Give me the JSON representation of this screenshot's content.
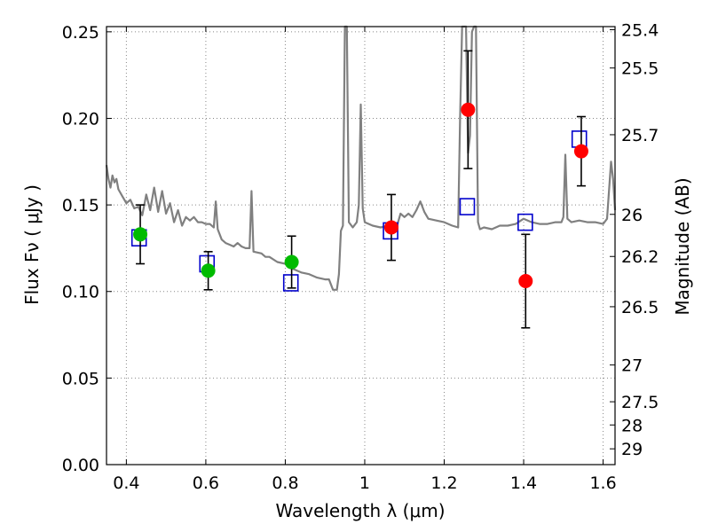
{
  "chart_data": {
    "type": "scatter",
    "xlabel": "Wavelength  λ (μm)",
    "ylabel": "Flux  Fν  ( μJy )",
    "y2label": "Magnitude (AB)",
    "xlim": [
      0.35,
      1.63
    ],
    "ylim": [
      0.0,
      0.253
    ],
    "grid": true,
    "x_ticks": [
      {
        "value": 0.4,
        "label": "0.4"
      },
      {
        "value": 0.6,
        "label": "0.6"
      },
      {
        "value": 0.8,
        "label": "0.8"
      },
      {
        "value": 1.0,
        "label": "1"
      },
      {
        "value": 1.2,
        "label": "1.2"
      },
      {
        "value": 1.4,
        "label": "1.4"
      },
      {
        "value": 1.6,
        "label": "1.6"
      }
    ],
    "y_ticks": [
      {
        "value": 0.0,
        "label": "0.00"
      },
      {
        "value": 0.05,
        "label": "0.05"
      },
      {
        "value": 0.1,
        "label": "0.10"
      },
      {
        "value": 0.15,
        "label": "0.15"
      },
      {
        "value": 0.2,
        "label": "0.20"
      },
      {
        "value": 0.25,
        "label": "0.25"
      }
    ],
    "y2_ticks": [
      {
        "mag": 25.4,
        "label": "25.4"
      },
      {
        "mag": 25.5,
        "label": "25.5"
      },
      {
        "mag": 25.7,
        "label": "25.7"
      },
      {
        "mag": 26.0,
        "label": "26"
      },
      {
        "mag": 26.2,
        "label": "26.2"
      },
      {
        "mag": 26.5,
        "label": "26.5"
      },
      {
        "mag": 27.0,
        "label": "27"
      },
      {
        "mag": 27.5,
        "label": "27.5"
      },
      {
        "mag": 28.0,
        "label": "28"
      },
      {
        "mag": 29.0,
        "label": "29"
      }
    ],
    "colors": {
      "model": "#808080",
      "green": "#00bb00",
      "red": "#ff0000",
      "box": "#0000cc",
      "errorbar": "#000000",
      "grid": "#888888"
    },
    "model_spectrum": [
      [
        0.35,
        0.173
      ],
      [
        0.355,
        0.165
      ],
      [
        0.36,
        0.16
      ],
      [
        0.365,
        0.167
      ],
      [
        0.37,
        0.163
      ],
      [
        0.375,
        0.165
      ],
      [
        0.38,
        0.159
      ],
      [
        0.39,
        0.155
      ],
      [
        0.4,
        0.151
      ],
      [
        0.41,
        0.153
      ],
      [
        0.42,
        0.148
      ],
      [
        0.43,
        0.149
      ],
      [
        0.44,
        0.144
      ],
      [
        0.45,
        0.156
      ],
      [
        0.46,
        0.147
      ],
      [
        0.47,
        0.16
      ],
      [
        0.48,
        0.146
      ],
      [
        0.49,
        0.158
      ],
      [
        0.5,
        0.145
      ],
      [
        0.51,
        0.151
      ],
      [
        0.52,
        0.14
      ],
      [
        0.53,
        0.147
      ],
      [
        0.54,
        0.138
      ],
      [
        0.55,
        0.143
      ],
      [
        0.56,
        0.141
      ],
      [
        0.57,
        0.143
      ],
      [
        0.58,
        0.14
      ],
      [
        0.59,
        0.14
      ],
      [
        0.6,
        0.139
      ],
      [
        0.61,
        0.139
      ],
      [
        0.62,
        0.137
      ],
      [
        0.625,
        0.152
      ],
      [
        0.63,
        0.136
      ],
      [
        0.64,
        0.13
      ],
      [
        0.65,
        0.128
      ],
      [
        0.66,
        0.127
      ],
      [
        0.67,
        0.126
      ],
      [
        0.68,
        0.128
      ],
      [
        0.69,
        0.126
      ],
      [
        0.7,
        0.125
      ],
      [
        0.71,
        0.125
      ],
      [
        0.715,
        0.158
      ],
      [
        0.72,
        0.123
      ],
      [
        0.74,
        0.122
      ],
      [
        0.75,
        0.12
      ],
      [
        0.76,
        0.12
      ],
      [
        0.78,
        0.117
      ],
      [
        0.8,
        0.116
      ],
      [
        0.82,
        0.113
      ],
      [
        0.84,
        0.111
      ],
      [
        0.86,
        0.11
      ],
      [
        0.88,
        0.108
      ],
      [
        0.9,
        0.107
      ],
      [
        0.91,
        0.107
      ],
      [
        0.92,
        0.101
      ],
      [
        0.93,
        0.101
      ],
      [
        0.935,
        0.11
      ],
      [
        0.94,
        0.135
      ],
      [
        0.945,
        0.138
      ],
      [
        0.95,
        0.253
      ],
      [
        0.955,
        0.253
      ],
      [
        0.96,
        0.14
      ],
      [
        0.97,
        0.137
      ],
      [
        0.98,
        0.14
      ],
      [
        0.985,
        0.15
      ],
      [
        0.99,
        0.208
      ],
      [
        0.995,
        0.148
      ],
      [
        1.0,
        0.14
      ],
      [
        1.02,
        0.138
      ],
      [
        1.04,
        0.137
      ],
      [
        1.06,
        0.138
      ],
      [
        1.07,
        0.136
      ],
      [
        1.08,
        0.137
      ],
      [
        1.09,
        0.145
      ],
      [
        1.1,
        0.143
      ],
      [
        1.11,
        0.145
      ],
      [
        1.12,
        0.143
      ],
      [
        1.13,
        0.147
      ],
      [
        1.14,
        0.152
      ],
      [
        1.15,
        0.146
      ],
      [
        1.16,
        0.142
      ],
      [
        1.18,
        0.141
      ],
      [
        1.2,
        0.14
      ],
      [
        1.22,
        0.138
      ],
      [
        1.235,
        0.137
      ],
      [
        1.24,
        0.2
      ],
      [
        1.245,
        0.253
      ],
      [
        1.255,
        0.253
      ],
      [
        1.26,
        0.18
      ],
      [
        1.265,
        0.19
      ],
      [
        1.27,
        0.25
      ],
      [
        1.275,
        0.253
      ],
      [
        1.28,
        0.253
      ],
      [
        1.285,
        0.14
      ],
      [
        1.29,
        0.136
      ],
      [
        1.3,
        0.137
      ],
      [
        1.32,
        0.136
      ],
      [
        1.34,
        0.138
      ],
      [
        1.36,
        0.138
      ],
      [
        1.38,
        0.139
      ],
      [
        1.4,
        0.142
      ],
      [
        1.42,
        0.14
      ],
      [
        1.44,
        0.139
      ],
      [
        1.46,
        0.139
      ],
      [
        1.48,
        0.14
      ],
      [
        1.495,
        0.14
      ],
      [
        1.5,
        0.143
      ],
      [
        1.505,
        0.179
      ],
      [
        1.51,
        0.142
      ],
      [
        1.52,
        0.14
      ],
      [
        1.54,
        0.141
      ],
      [
        1.56,
        0.14
      ],
      [
        1.58,
        0.14
      ],
      [
        1.6,
        0.139
      ],
      [
        1.61,
        0.142
      ],
      [
        1.62,
        0.175
      ],
      [
        1.625,
        0.165
      ],
      [
        1.63,
        0.147
      ]
    ],
    "model_boxes": [
      {
        "x": 0.432,
        "y": 0.131
      },
      {
        "x": 0.603,
        "y": 0.116
      },
      {
        "x": 0.814,
        "y": 0.105
      },
      {
        "x": 1.065,
        "y": 0.135
      },
      {
        "x": 1.258,
        "y": 0.149
      },
      {
        "x": 1.404,
        "y": 0.14
      },
      {
        "x": 1.54,
        "y": 0.188
      }
    ],
    "observations": [
      {
        "x": 0.435,
        "y": 0.133,
        "err": 0.017,
        "color": "green"
      },
      {
        "x": 0.606,
        "y": 0.112,
        "err": 0.011,
        "color": "green"
      },
      {
        "x": 0.816,
        "y": 0.117,
        "err": 0.015,
        "color": "green"
      },
      {
        "x": 1.067,
        "y": 0.137,
        "err": 0.019,
        "color": "red"
      },
      {
        "x": 1.26,
        "y": 0.205,
        "err": 0.034,
        "color": "red"
      },
      {
        "x": 1.405,
        "y": 0.106,
        "err": 0.027,
        "color": "red"
      },
      {
        "x": 1.545,
        "y": 0.181,
        "err": 0.02,
        "color": "red"
      }
    ]
  }
}
